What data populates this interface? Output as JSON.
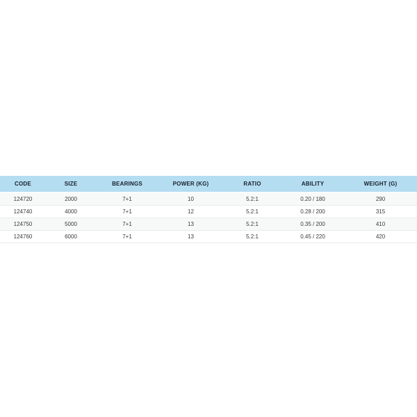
{
  "page": {
    "background": "#ffffff"
  },
  "table": {
    "columns": [
      {
        "label": "CODE"
      },
      {
        "label": "SIZE"
      },
      {
        "label": "BEARINGS"
      },
      {
        "label": "POWER (Kg)"
      },
      {
        "label": "RATIO"
      },
      {
        "label": "ABILITY"
      },
      {
        "label": "WEIGHT (g)"
      }
    ],
    "rows": [
      [
        "124720",
        "2000",
        "7+1",
        "10",
        "5.2:1",
        "0.20 / 180",
        "290"
      ],
      [
        "124740",
        "4000",
        "7+1",
        "12",
        "5.2:1",
        "0.28 / 200",
        "315"
      ],
      [
        "124750",
        "5000",
        "7+1",
        "13",
        "5.2:1",
        "0.35 / 200",
        "410"
      ],
      [
        "124760",
        "6000",
        "7+1",
        "13",
        "5.2:1",
        "0.45 / 220",
        "420"
      ]
    ],
    "colors": {
      "header_bg": "#b5ddf2",
      "header_text": "#15202b",
      "row_stripe": "#f7f8f8",
      "row_text": "#3a3a3a",
      "row_border": "#e9eaeb"
    }
  }
}
